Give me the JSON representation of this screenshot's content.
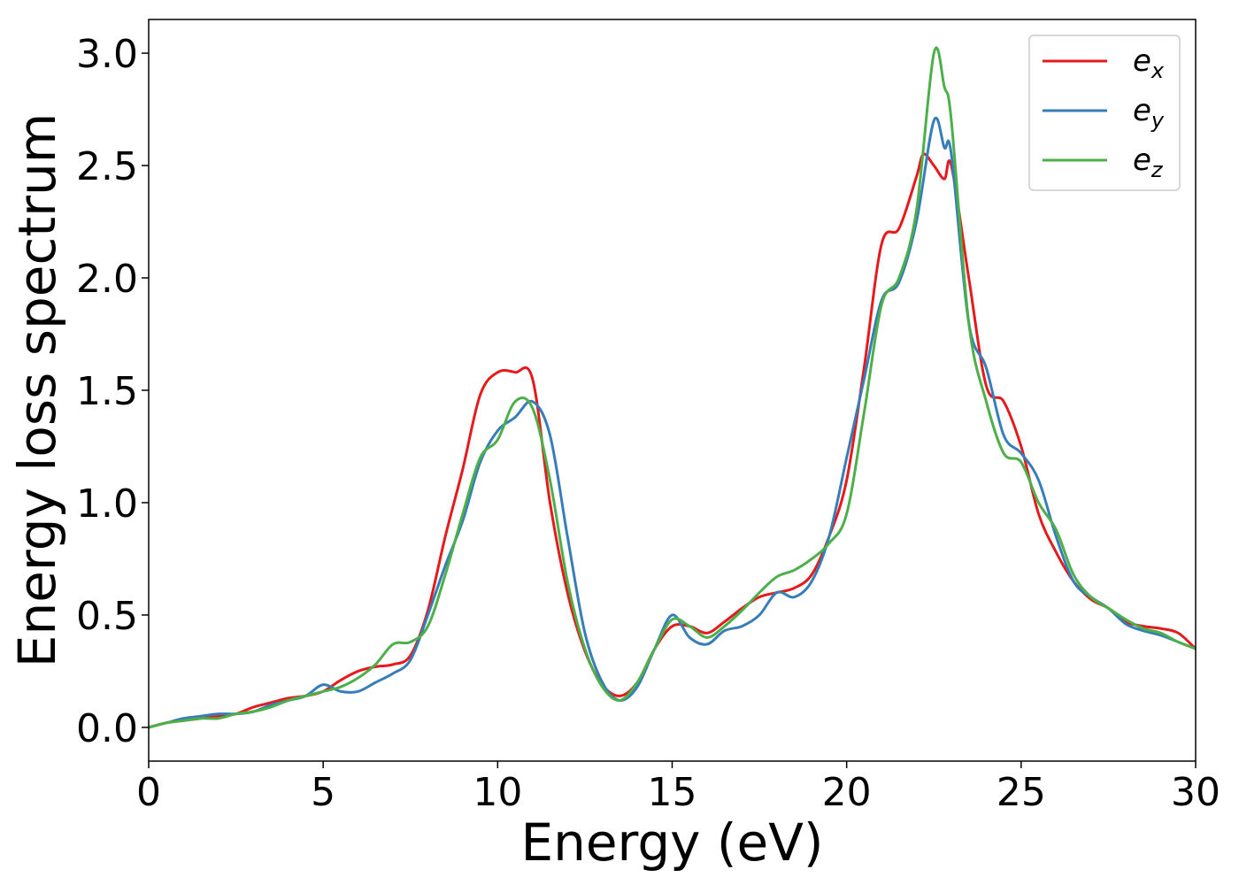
{
  "chart_data": {
    "type": "line",
    "title": "",
    "xlabel": "Energy (eV)",
    "ylabel": "Energy loss spectrum",
    "xlim": [
      0,
      30
    ],
    "ylim": [
      -0.15,
      3.15
    ],
    "xticks": [
      0,
      5,
      10,
      15,
      20,
      25,
      30
    ],
    "yticks": [
      0.0,
      0.5,
      1.0,
      1.5,
      2.0,
      2.5,
      3.0
    ],
    "xtick_labels": [
      "0",
      "5",
      "10",
      "15",
      "20",
      "25",
      "30"
    ],
    "ytick_labels": [
      "0.0",
      "0.5",
      "1.0",
      "1.5",
      "2.0",
      "2.5",
      "3.0"
    ],
    "grid": false,
    "legend_position": "top-right",
    "series": [
      {
        "name": "e_x",
        "legend_base": "e",
        "legend_sub": "x",
        "color": "#e41a1c",
        "x": [
          0,
          0.5,
          1,
          1.5,
          2,
          2.5,
          3,
          3.5,
          4,
          4.5,
          5,
          5.5,
          6,
          6.5,
          7,
          7.5,
          8,
          8.5,
          9,
          9.5,
          10,
          10.5,
          11,
          11.5,
          12,
          12.5,
          13,
          13.5,
          14,
          14.5,
          15,
          15.5,
          16,
          16.5,
          17,
          17.5,
          18,
          18.5,
          19,
          19.5,
          20,
          20.5,
          21,
          21.5,
          22,
          22.2,
          22.5,
          22.8,
          23,
          23.5,
          24,
          24.5,
          25,
          25.5,
          26,
          26.5,
          27,
          27.5,
          28,
          28.5,
          29,
          29.5,
          30
        ],
        "y": [
          0.0,
          0.02,
          0.03,
          0.04,
          0.05,
          0.06,
          0.09,
          0.11,
          0.13,
          0.14,
          0.16,
          0.21,
          0.25,
          0.27,
          0.28,
          0.32,
          0.52,
          0.85,
          1.15,
          1.48,
          1.58,
          1.58,
          1.55,
          1.0,
          0.6,
          0.34,
          0.19,
          0.14,
          0.2,
          0.35,
          0.45,
          0.45,
          0.42,
          0.47,
          0.53,
          0.58,
          0.6,
          0.62,
          0.68,
          0.85,
          1.1,
          1.6,
          2.15,
          2.22,
          2.45,
          2.55,
          2.5,
          2.44,
          2.5,
          2.0,
          1.52,
          1.45,
          1.25,
          0.95,
          0.78,
          0.65,
          0.57,
          0.53,
          0.47,
          0.45,
          0.44,
          0.42,
          0.35
        ]
      },
      {
        "name": "e_y",
        "legend_base": "e",
        "legend_sub": "y",
        "color": "#377eb8",
        "x": [
          0,
          0.5,
          1,
          1.5,
          2,
          2.5,
          3,
          3.5,
          4,
          4.5,
          5,
          5.5,
          6,
          6.5,
          7,
          7.5,
          8,
          8.5,
          9,
          9.5,
          10,
          10.5,
          11,
          11.5,
          12,
          12.5,
          13,
          13.5,
          14,
          14.5,
          15,
          15.5,
          16,
          16.5,
          17,
          17.5,
          18,
          18.5,
          19,
          19.5,
          20,
          20.5,
          21,
          21.5,
          22,
          22.5,
          22.8,
          23,
          23.5,
          24,
          24.5,
          25,
          25.5,
          26,
          26.5,
          27,
          27.5,
          28,
          28.5,
          29,
          29.5,
          30
        ],
        "y": [
          0.0,
          0.02,
          0.04,
          0.05,
          0.06,
          0.06,
          0.07,
          0.1,
          0.12,
          0.14,
          0.19,
          0.16,
          0.16,
          0.2,
          0.24,
          0.3,
          0.5,
          0.72,
          0.92,
          1.18,
          1.32,
          1.38,
          1.45,
          1.3,
          0.85,
          0.42,
          0.2,
          0.12,
          0.18,
          0.35,
          0.5,
          0.4,
          0.37,
          0.43,
          0.45,
          0.5,
          0.6,
          0.58,
          0.65,
          0.85,
          1.2,
          1.55,
          1.9,
          1.98,
          2.25,
          2.7,
          2.58,
          2.55,
          1.8,
          1.6,
          1.3,
          1.22,
          1.1,
          0.85,
          0.65,
          0.58,
          0.53,
          0.46,
          0.43,
          0.41,
          0.38,
          0.35
        ]
      },
      {
        "name": "e_z",
        "legend_base": "e",
        "legend_sub": "z",
        "color": "#4daf4a",
        "x": [
          0,
          0.5,
          1,
          1.5,
          2,
          2.5,
          3,
          3.5,
          4,
          4.5,
          5,
          5.5,
          6,
          6.5,
          7,
          7.5,
          8,
          8.5,
          9,
          9.5,
          10,
          10.5,
          11,
          11.5,
          12,
          12.5,
          13,
          13.5,
          14,
          14.5,
          15,
          15.5,
          16,
          16.5,
          17,
          17.5,
          18,
          18.5,
          19,
          19.5,
          20,
          20.5,
          21,
          21.5,
          22,
          22.5,
          22.8,
          23,
          23.5,
          24,
          24.5,
          25,
          25.5,
          26,
          26.5,
          27,
          27.5,
          28,
          28.5,
          29,
          29.5,
          30
        ],
        "y": [
          0.0,
          0.02,
          0.03,
          0.04,
          0.04,
          0.06,
          0.07,
          0.09,
          0.12,
          0.14,
          0.16,
          0.18,
          0.22,
          0.28,
          0.37,
          0.38,
          0.45,
          0.68,
          0.95,
          1.2,
          1.28,
          1.45,
          1.42,
          1.1,
          0.65,
          0.35,
          0.18,
          0.12,
          0.2,
          0.35,
          0.48,
          0.45,
          0.4,
          0.45,
          0.52,
          0.6,
          0.67,
          0.7,
          0.75,
          0.82,
          0.95,
          1.4,
          1.88,
          2.0,
          2.3,
          3.0,
          2.85,
          2.7,
          1.8,
          1.45,
          1.22,
          1.18,
          1.0,
          0.88,
          0.68,
          0.58,
          0.53,
          0.48,
          0.44,
          0.42,
          0.38,
          0.35
        ]
      }
    ]
  }
}
